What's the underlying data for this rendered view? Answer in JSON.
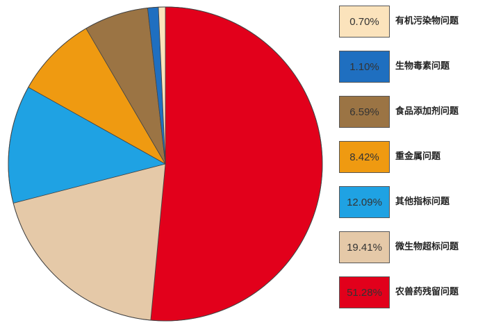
{
  "chart_data": {
    "type": "pie",
    "title": "",
    "categories": [
      "有机污染物问题",
      "生物毒素问题",
      "食品添加剂问题",
      "重金属问题",
      "其他指标问题",
      "微生物超标问题",
      "农兽药残留问题"
    ],
    "values": [
      0.7,
      1.1,
      6.59,
      8.42,
      12.09,
      19.41,
      51.28
    ],
    "value_labels": [
      "0.70%",
      "1.10%",
      "6.59%",
      "8.42%",
      "12.09%",
      "19.41%",
      "51.28%"
    ],
    "colors": [
      "#fbe3bc",
      "#1f6fc0",
      "#9b7444",
      "#ef9a11",
      "#1fa2e3",
      "#e5c9a8",
      "#e2001b"
    ],
    "legend_position": "right",
    "start_angle": "top",
    "direction": "clockwise",
    "draw_order": [
      6,
      5,
      4,
      3,
      2,
      1,
      0
    ]
  }
}
